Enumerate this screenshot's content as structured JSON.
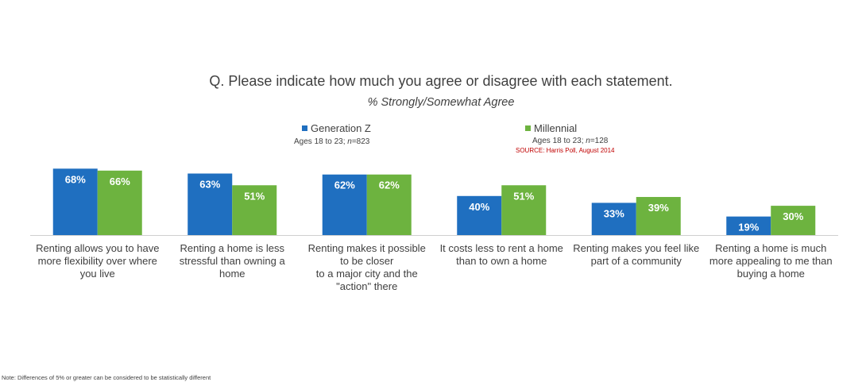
{
  "chart_data": {
    "type": "bar",
    "title": "Q. Please indicate how much you agree or disagree with each statement.",
    "subtitle": "% Strongly/Somewhat Agree",
    "categories": [
      "Renting allows you to have\nmore flexibility over where\nyou live",
      "Renting a home is less\nstressful than owning a\nhome",
      "Renting makes it possible\nto be closer\nto a major city and the\n\"action\" there",
      "It costs less to rent a home\nthan to own a home",
      "Renting makes you feel like\npart of a community",
      "Renting a home is much\nmore appealing to me than\nbuying a home"
    ],
    "series": [
      {
        "name": "Generation Z",
        "color": "#1f6fc0",
        "values": [
          68,
          63,
          62,
          40,
          33,
          19
        ],
        "labels": [
          "68%",
          "63%",
          "62%",
          "40%",
          "33%",
          "19%"
        ]
      },
      {
        "name": "Millennial",
        "color": "#6db33f",
        "values": [
          66,
          51,
          62,
          51,
          39,
          30
        ],
        "labels": [
          "66%",
          "51%",
          "62%",
          "51%",
          "39%",
          "30%"
        ]
      }
    ],
    "ylim": [
      0,
      100
    ],
    "grid": false,
    "legend_position": "top"
  },
  "legend": {
    "genz_label": "Generation Z",
    "genz_sub": "Ages 18 to 23; n=823",
    "genz_sub_prefix": "Ages 18 to 23; ",
    "genz_sub_n": "n",
    "genz_sub_val": "=823",
    "mill_label": "Millennial",
    "mill_sub_prefix": "Ages 18 to 23; ",
    "mill_sub_n": "n",
    "mill_sub_val": "=128",
    "source": "SOURCE: Harris Poll, August 2014"
  },
  "footnote": "Note:  Differences of 5% or greater can be considered to be statistically different"
}
